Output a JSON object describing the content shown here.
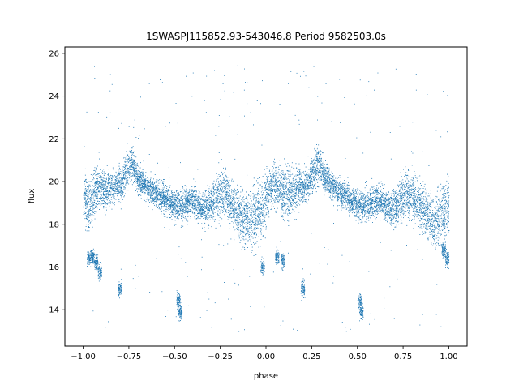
{
  "chart_data": {
    "type": "scatter",
    "title": "1SWASPJ115852.93-543046.8 Period 9582503.0s",
    "xlabel": "phase",
    "ylabel": "flux",
    "xlim": [
      -1.1,
      1.1
    ],
    "ylim": [
      12.3,
      26.3
    ],
    "xticks": [
      -1.0,
      -0.75,
      -0.5,
      -0.25,
      0.0,
      0.25,
      0.5,
      0.75,
      1.0
    ],
    "xtick_labels": [
      "−1.00",
      "−0.75",
      "−0.50",
      "−0.25",
      "0.00",
      "0.25",
      "0.50",
      "0.75",
      "1.00"
    ],
    "yticks": [
      14,
      16,
      18,
      20,
      22,
      24,
      26
    ],
    "ytick_labels": [
      "14",
      "16",
      "18",
      "20",
      "22",
      "24",
      "26"
    ],
    "grid": false,
    "marker_color": "#1f77b4",
    "series": [
      {
        "profile": [
          [
            -1.0,
            19.3,
            2.6
          ],
          [
            -0.97,
            18.9,
            3.0
          ],
          [
            -0.94,
            19.5,
            2.4
          ],
          [
            -0.91,
            19.7,
            2.0
          ],
          [
            -0.88,
            19.6,
            2.0
          ],
          [
            -0.85,
            19.7,
            1.8
          ],
          [
            -0.82,
            19.9,
            1.6
          ],
          [
            -0.79,
            19.9,
            1.8
          ],
          [
            -0.76,
            20.6,
            2.0
          ],
          [
            -0.73,
            20.9,
            1.8
          ],
          [
            -0.7,
            20.1,
            1.6
          ],
          [
            -0.67,
            19.9,
            1.2
          ],
          [
            -0.64,
            19.7,
            1.2
          ],
          [
            -0.61,
            19.5,
            1.4
          ],
          [
            -0.58,
            19.3,
            1.4
          ],
          [
            -0.55,
            19.2,
            1.4
          ],
          [
            -0.52,
            19.0,
            1.4
          ],
          [
            -0.49,
            18.9,
            1.5
          ],
          [
            -0.46,
            18.9,
            1.6
          ],
          [
            -0.43,
            19.0,
            1.6
          ],
          [
            -0.4,
            19.2,
            1.5
          ],
          [
            -0.37,
            18.8,
            1.4
          ],
          [
            -0.34,
            18.7,
            1.6
          ],
          [
            -0.31,
            18.9,
            1.8
          ],
          [
            -0.28,
            19.3,
            2.2
          ],
          [
            -0.25,
            19.5,
            2.4
          ],
          [
            -0.22,
            19.4,
            2.2
          ],
          [
            -0.19,
            19.0,
            2.2
          ],
          [
            -0.16,
            18.6,
            2.4
          ],
          [
            -0.13,
            18.3,
            2.6
          ],
          [
            -0.1,
            18.2,
            2.6
          ],
          [
            -0.07,
            18.4,
            2.8
          ],
          [
            -0.04,
            18.6,
            3.0
          ],
          [
            -0.01,
            19.0,
            3.0
          ],
          [
            0.02,
            19.6,
            2.6
          ],
          [
            0.05,
            19.9,
            2.2
          ],
          [
            0.08,
            19.6,
            2.4
          ],
          [
            0.11,
            19.4,
            2.6
          ],
          [
            0.14,
            19.5,
            2.4
          ],
          [
            0.17,
            19.7,
            1.8
          ],
          [
            0.2,
            19.8,
            1.6
          ],
          [
            0.23,
            19.9,
            1.8
          ],
          [
            0.26,
            20.6,
            2.0
          ],
          [
            0.29,
            20.9,
            2.0
          ],
          [
            0.32,
            20.2,
            1.6
          ],
          [
            0.35,
            19.9,
            1.2
          ],
          [
            0.38,
            19.7,
            1.2
          ],
          [
            0.41,
            19.5,
            1.4
          ],
          [
            0.44,
            19.3,
            1.4
          ],
          [
            0.47,
            19.1,
            1.4
          ],
          [
            0.5,
            19.0,
            1.4
          ],
          [
            0.53,
            18.9,
            1.5
          ],
          [
            0.56,
            18.9,
            1.6
          ],
          [
            0.59,
            19.0,
            1.6
          ],
          [
            0.62,
            19.2,
            1.5
          ],
          [
            0.65,
            18.9,
            1.4
          ],
          [
            0.68,
            18.7,
            1.6
          ],
          [
            0.71,
            18.8,
            1.8
          ],
          [
            0.74,
            19.2,
            2.2
          ],
          [
            0.77,
            19.5,
            2.4
          ],
          [
            0.8,
            19.3,
            2.2
          ],
          [
            0.83,
            19.0,
            2.2
          ],
          [
            0.86,
            18.7,
            2.4
          ],
          [
            0.89,
            18.3,
            2.6
          ],
          [
            0.92,
            18.1,
            2.6
          ],
          [
            0.95,
            18.4,
            2.8
          ],
          [
            0.98,
            18.6,
            3.0
          ],
          [
            1.0,
            18.9,
            3.0
          ]
        ],
        "clumps": [
          [
            -0.97,
            16.4
          ],
          [
            -0.95,
            16.5
          ],
          [
            -0.93,
            16.2
          ],
          [
            -0.91,
            15.8
          ],
          [
            -0.8,
            15.0
          ],
          [
            -0.48,
            14.5
          ],
          [
            -0.47,
            13.9
          ],
          [
            -0.02,
            16.0
          ],
          [
            0.06,
            16.5
          ],
          [
            0.09,
            16.3
          ],
          [
            0.2,
            15.0
          ],
          [
            0.51,
            14.4
          ],
          [
            0.52,
            13.9
          ],
          [
            0.99,
            16.4
          ],
          [
            0.97,
            16.8
          ]
        ],
        "outliers": [
          [
            -0.94,
            25.4
          ],
          [
            -0.86,
            24.8
          ],
          [
            -0.64,
            24.6
          ],
          [
            -0.41,
            24.4
          ],
          [
            -0.4,
            25.1
          ],
          [
            -0.18,
            24.2
          ],
          [
            -0.12,
            24.3
          ],
          [
            0.12,
            24.6
          ],
          [
            0.26,
            25.4
          ],
          [
            0.4,
            24.8
          ],
          [
            0.56,
            24.7
          ],
          [
            0.59,
            24.3
          ],
          [
            0.61,
            25.1
          ],
          [
            0.82,
            24.3
          ],
          [
            0.88,
            24.1
          ],
          [
            -0.88,
            13.2
          ],
          [
            -0.55,
            13.7
          ],
          [
            -0.3,
            13.2
          ],
          [
            -0.15,
            13.0
          ],
          [
            0.12,
            13.4
          ],
          [
            0.46,
            13.1
          ],
          [
            0.7,
            13.6
          ],
          [
            0.84,
            13.3
          ],
          [
            0.93,
            13.8
          ],
          [
            -0.72,
            22.9
          ],
          [
            -0.26,
            22.6
          ],
          [
            0.28,
            22.9
          ],
          [
            0.73,
            22.6
          ],
          [
            0.8,
            22.8
          ]
        ]
      }
    ]
  }
}
